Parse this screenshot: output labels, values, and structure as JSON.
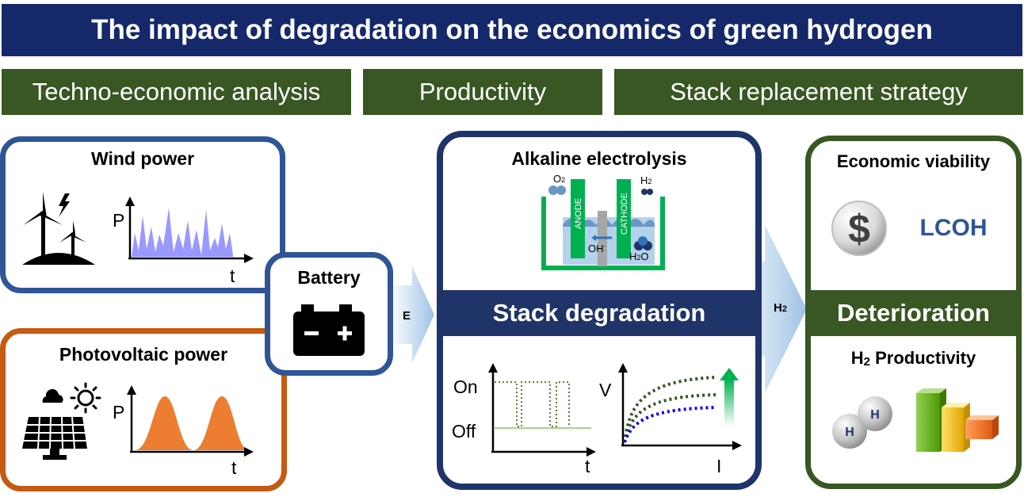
{
  "title": "The impact of degradation on the economics of green hydrogen",
  "topics": [
    "Techno-economic analysis",
    "Productivity",
    "Stack replacement strategy"
  ],
  "wind": {
    "title": "Wind power",
    "y_label": "P",
    "x_label": "t"
  },
  "pv": {
    "title": "Photovoltaic power",
    "y_label": "P",
    "x_label": "t"
  },
  "battery": {
    "title": "Battery"
  },
  "arrow_e": "E",
  "arrow_h2": "H2",
  "electrolysis": {
    "title": "Alkaline electrolysis",
    "o2": "O2",
    "h2": "H2",
    "anode": "ANODE",
    "cathode": "CATHODE",
    "oh": "OH-",
    "h2o": "H2O"
  },
  "stack_degradation": "Stack degradation",
  "onoff": {
    "on": "On",
    "off": "Off",
    "x_label": "t"
  },
  "vi": {
    "y_label": "V",
    "x_label": "I"
  },
  "economic": {
    "title": "Economic viability",
    "lcoh": "LCOH",
    "dollar": "$"
  },
  "deterioration": "Deterioration",
  "productivity": {
    "title": "H2 Productivity",
    "atom": "H"
  },
  "colors": {
    "navy": "#14286a",
    "dark_green": "#385723",
    "wind_blue": "#2f5597",
    "pv_orange": "#c55a11",
    "wind_fill": "#9999ff",
    "pv_fill": "#ed7d31",
    "electrolyzer_green": "#00b050",
    "arrow_light_blue": "#bdd7ee"
  }
}
